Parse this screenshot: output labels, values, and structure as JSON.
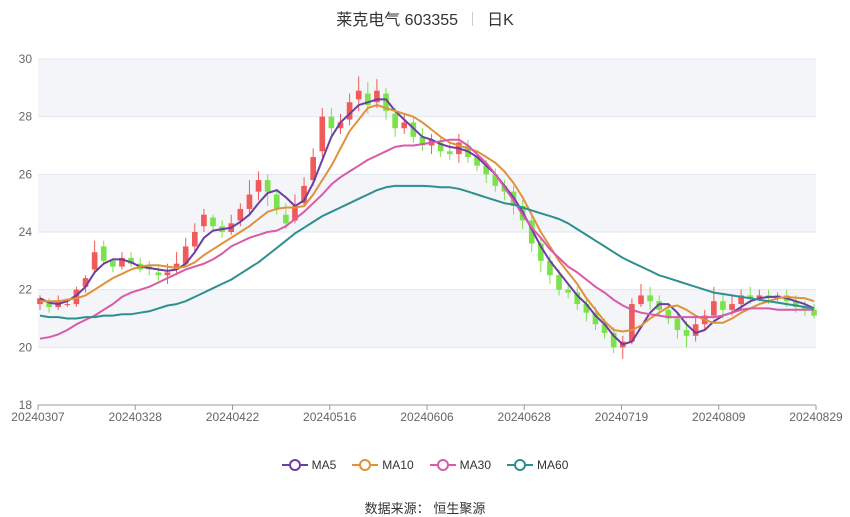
{
  "title": {
    "name": "莱克电气 603355",
    "period": "日K"
  },
  "source": {
    "label": "数据来源：",
    "value": "恒生聚源"
  },
  "colors": {
    "up": "#f15a5a",
    "down": "#7be24c",
    "MA5": "#6b3fa0",
    "MA10": "#e0913b",
    "MA30": "#d85aa8",
    "MA60": "#2f8f8f"
  },
  "chart_data": {
    "type": "candlestick",
    "title": "莱克电气 603355 日K",
    "ylim": [
      18,
      30
    ],
    "yticks": [
      18,
      20,
      22,
      24,
      26,
      28,
      30
    ],
    "xtick_labels": [
      "20240307",
      "20240328",
      "20240422",
      "20240516",
      "20240606",
      "20240628",
      "20240719",
      "20240809",
      "20240829"
    ],
    "grid": true,
    "legend_position": "bottom",
    "candles": [
      [
        21.5,
        21.7,
        21.3,
        21.8
      ],
      [
        21.6,
        21.4,
        21.2,
        21.7
      ],
      [
        21.4,
        21.6,
        21.3,
        21.8
      ],
      [
        21.5,
        21.5,
        21.4,
        21.7
      ],
      [
        21.5,
        22.0,
        21.4,
        22.1
      ],
      [
        22.1,
        22.4,
        21.9,
        22.5
      ],
      [
        22.7,
        23.3,
        22.6,
        23.7
      ],
      [
        23.5,
        23.0,
        22.9,
        23.7
      ],
      [
        23.0,
        22.8,
        22.6,
        23.1
      ],
      [
        22.8,
        23.1,
        22.7,
        23.3
      ],
      [
        23.1,
        22.9,
        22.8,
        23.3
      ],
      [
        22.9,
        22.7,
        22.6,
        23.1
      ],
      [
        22.8,
        22.7,
        22.5,
        23.0
      ],
      [
        22.6,
        22.5,
        22.3,
        22.8
      ],
      [
        22.5,
        22.6,
        22.2,
        22.9
      ],
      [
        22.7,
        22.9,
        22.5,
        23.3
      ],
      [
        22.9,
        23.5,
        22.8,
        23.8
      ],
      [
        23.5,
        24.0,
        23.3,
        24.3
      ],
      [
        24.2,
        24.6,
        24.0,
        24.8
      ],
      [
        24.5,
        24.2,
        24.0,
        24.6
      ],
      [
        24.2,
        24.0,
        23.8,
        24.4
      ],
      [
        24.0,
        24.3,
        23.9,
        24.6
      ],
      [
        24.4,
        24.8,
        24.2,
        25.0
      ],
      [
        24.8,
        25.3,
        24.6,
        25.8
      ],
      [
        25.4,
        25.8,
        25.1,
        26.1
      ],
      [
        25.8,
        25.4,
        24.9,
        26.0
      ],
      [
        25.3,
        24.8,
        24.6,
        25.5
      ],
      [
        24.6,
        24.3,
        24.1,
        25.0
      ],
      [
        24.4,
        24.9,
        24.3,
        25.3
      ],
      [
        25.0,
        25.6,
        24.9,
        25.9
      ],
      [
        25.8,
        26.6,
        25.6,
        26.9
      ],
      [
        26.8,
        28.0,
        26.6,
        28.3
      ],
      [
        28.0,
        27.6,
        27.3,
        28.3
      ],
      [
        27.6,
        27.8,
        27.4,
        28.1
      ],
      [
        27.9,
        28.5,
        27.7,
        28.8
      ],
      [
        28.6,
        28.9,
        28.2,
        29.4
      ],
      [
        28.8,
        28.4,
        28.1,
        29.2
      ],
      [
        28.5,
        28.9,
        28.3,
        29.3
      ],
      [
        28.8,
        28.2,
        27.9,
        29.0
      ],
      [
        28.1,
        27.6,
        27.3,
        28.3
      ],
      [
        27.6,
        27.8,
        27.4,
        28.1
      ],
      [
        27.8,
        27.3,
        27.1,
        28.0
      ],
      [
        27.3,
        27.0,
        26.8,
        27.6
      ],
      [
        27.0,
        27.2,
        26.7,
        27.4
      ],
      [
        27.1,
        26.8,
        26.6,
        27.3
      ],
      [
        26.8,
        26.7,
        26.5,
        27.1
      ],
      [
        26.7,
        27.1,
        26.4,
        27.4
      ],
      [
        27.0,
        26.6,
        26.4,
        27.2
      ],
      [
        26.6,
        26.3,
        26.1,
        26.8
      ],
      [
        26.3,
        26.0,
        25.7,
        26.5
      ],
      [
        26.0,
        25.6,
        25.4,
        26.2
      ],
      [
        25.6,
        25.4,
        25.1,
        25.8
      ],
      [
        25.4,
        24.9,
        24.6,
        25.6
      ],
      [
        24.9,
        24.4,
        24.1,
        25.1
      ],
      [
        24.4,
        23.6,
        23.3,
        24.6
      ],
      [
        23.6,
        23.0,
        22.6,
        23.8
      ],
      [
        23.0,
        22.5,
        22.2,
        23.2
      ],
      [
        22.5,
        22.0,
        21.8,
        22.7
      ],
      [
        22.0,
        21.9,
        21.7,
        22.2
      ],
      [
        21.9,
        21.5,
        21.3,
        22.1
      ],
      [
        21.5,
        21.2,
        20.9,
        21.7
      ],
      [
        21.2,
        20.8,
        20.6,
        21.4
      ],
      [
        20.8,
        20.5,
        20.3,
        21.0
      ],
      [
        20.5,
        20.0,
        19.8,
        20.7
      ],
      [
        20.0,
        20.2,
        19.6,
        20.4
      ],
      [
        20.2,
        21.5,
        20.1,
        21.7
      ],
      [
        21.5,
        21.8,
        21.4,
        22.2
      ],
      [
        21.8,
        21.6,
        21.3,
        22.1
      ],
      [
        21.6,
        21.3,
        21.1,
        21.8
      ],
      [
        21.3,
        21.0,
        20.8,
        21.5
      ],
      [
        21.0,
        20.6,
        20.3,
        21.2
      ],
      [
        20.6,
        20.4,
        20.0,
        20.9
      ],
      [
        20.4,
        20.8,
        20.2,
        21.1
      ],
      [
        20.8,
        21.1,
        20.6,
        21.3
      ],
      [
        21.1,
        21.6,
        21.0,
        22.1
      ],
      [
        21.6,
        21.3,
        21.0,
        21.9
      ],
      [
        21.3,
        21.5,
        21.1,
        21.8
      ],
      [
        21.5,
        21.8,
        21.3,
        22.0
      ],
      [
        21.8,
        21.7,
        21.5,
        22.1
      ],
      [
        21.7,
        21.8,
        21.6,
        22.0
      ],
      [
        21.8,
        21.7,
        21.5,
        22.0
      ],
      [
        21.7,
        21.8,
        21.6,
        21.9
      ],
      [
        21.8,
        21.6,
        21.4,
        22.0
      ],
      [
        21.6,
        21.4,
        21.2,
        21.8
      ],
      [
        21.4,
        21.3,
        21.1,
        21.6
      ],
      [
        21.3,
        21.1,
        21.0,
        21.5
      ]
    ],
    "series": [
      {
        "name": "MA5",
        "values": [
          21.7,
          21.55,
          21.5,
          21.6,
          21.8,
          22.1,
          22.6,
          22.9,
          23.05,
          23.05,
          22.95,
          22.8,
          22.75,
          22.7,
          22.65,
          22.7,
          22.9,
          23.3,
          23.8,
          24.05,
          24.1,
          24.15,
          24.35,
          24.6,
          25.0,
          25.35,
          25.45,
          25.2,
          24.9,
          25.1,
          25.7,
          26.5,
          27.3,
          27.8,
          28.1,
          28.4,
          28.5,
          28.6,
          28.6,
          28.2,
          27.9,
          27.6,
          27.3,
          27.2,
          27.05,
          26.95,
          26.9,
          26.8,
          26.6,
          26.3,
          26.0,
          25.6,
          25.2,
          24.7,
          24.1,
          23.5,
          23.0,
          22.6,
          22.2,
          21.8,
          21.5,
          21.1,
          20.8,
          20.4,
          20.1,
          20.2,
          20.7,
          21.2,
          21.5,
          21.5,
          21.2,
          20.8,
          20.5,
          20.6,
          20.9,
          21.1,
          21.2,
          21.4,
          21.6,
          21.7,
          21.75,
          21.75,
          21.7,
          21.6,
          21.5,
          21.35
        ]
      },
      {
        "name": "MA10",
        "values": [
          21.6,
          21.6,
          21.6,
          21.65,
          21.7,
          21.8,
          22.0,
          22.2,
          22.4,
          22.55,
          22.7,
          22.8,
          22.85,
          22.85,
          22.8,
          22.75,
          22.8,
          22.95,
          23.2,
          23.4,
          23.6,
          23.8,
          24.0,
          24.2,
          24.45,
          24.7,
          24.8,
          24.85,
          24.85,
          24.9,
          25.3,
          25.8,
          26.3,
          26.9,
          27.5,
          27.9,
          28.3,
          28.4,
          28.3,
          28.2,
          28.1,
          28.0,
          27.8,
          27.55,
          27.3,
          27.1,
          27.0,
          26.9,
          26.8,
          26.6,
          26.4,
          26.1,
          25.7,
          25.2,
          24.6,
          24.0,
          23.5,
          23.0,
          22.6,
          22.2,
          21.7,
          21.3,
          20.9,
          20.6,
          20.55,
          20.6,
          20.75,
          21.0,
          21.2,
          21.4,
          21.45,
          21.3,
          21.1,
          20.95,
          20.85,
          20.85,
          21.0,
          21.2,
          21.35,
          21.5,
          21.6,
          21.7,
          21.75,
          21.72,
          21.7,
          21.6
        ]
      },
      {
        "name": "MA30",
        "values": [
          20.3,
          20.35,
          20.45,
          20.6,
          20.8,
          20.95,
          21.1,
          21.3,
          21.5,
          21.75,
          21.9,
          22.0,
          22.1,
          22.25,
          22.4,
          22.55,
          22.7,
          22.8,
          22.9,
          23.05,
          23.25,
          23.5,
          23.65,
          23.8,
          23.9,
          24.0,
          24.05,
          24.2,
          24.45,
          24.7,
          25.0,
          25.3,
          25.65,
          25.9,
          26.1,
          26.3,
          26.5,
          26.65,
          26.8,
          26.95,
          27.0,
          27.0,
          27.05,
          27.1,
          27.15,
          27.2,
          27.2,
          27.0,
          26.7,
          26.4,
          26.0,
          25.55,
          25.1,
          24.6,
          24.15,
          23.8,
          23.4,
          23.1,
          22.8,
          22.6,
          22.35,
          22.1,
          21.9,
          21.65,
          21.45,
          21.3,
          21.2,
          21.15,
          21.1,
          21.05,
          21.05,
          21.05,
          21.05,
          21.05,
          21.05,
          21.1,
          21.2,
          21.3,
          21.35,
          21.35,
          21.35,
          21.3,
          21.3,
          21.3,
          21.3,
          21.3
        ]
      },
      {
        "name": "MA60",
        "values": [
          21.1,
          21.05,
          21.05,
          21.0,
          21.0,
          21.05,
          21.05,
          21.1,
          21.1,
          21.15,
          21.15,
          21.2,
          21.25,
          21.35,
          21.45,
          21.5,
          21.6,
          21.75,
          21.9,
          22.05,
          22.2,
          22.35,
          22.55,
          22.75,
          22.95,
          23.2,
          23.45,
          23.7,
          23.95,
          24.15,
          24.35,
          24.55,
          24.7,
          24.85,
          25.0,
          25.15,
          25.3,
          25.45,
          25.55,
          25.6,
          25.6,
          25.6,
          25.6,
          25.58,
          25.55,
          25.55,
          25.5,
          25.4,
          25.3,
          25.2,
          25.1,
          25.0,
          24.95,
          24.85,
          24.75,
          24.65,
          24.55,
          24.45,
          24.3,
          24.1,
          23.9,
          23.7,
          23.5,
          23.3,
          23.1,
          22.95,
          22.8,
          22.65,
          22.5,
          22.4,
          22.3,
          22.2,
          22.1,
          22.0,
          21.9,
          21.85,
          21.8,
          21.75,
          21.7,
          21.65,
          21.6,
          21.55,
          21.5,
          21.45,
          21.4,
          21.35
        ]
      }
    ]
  }
}
